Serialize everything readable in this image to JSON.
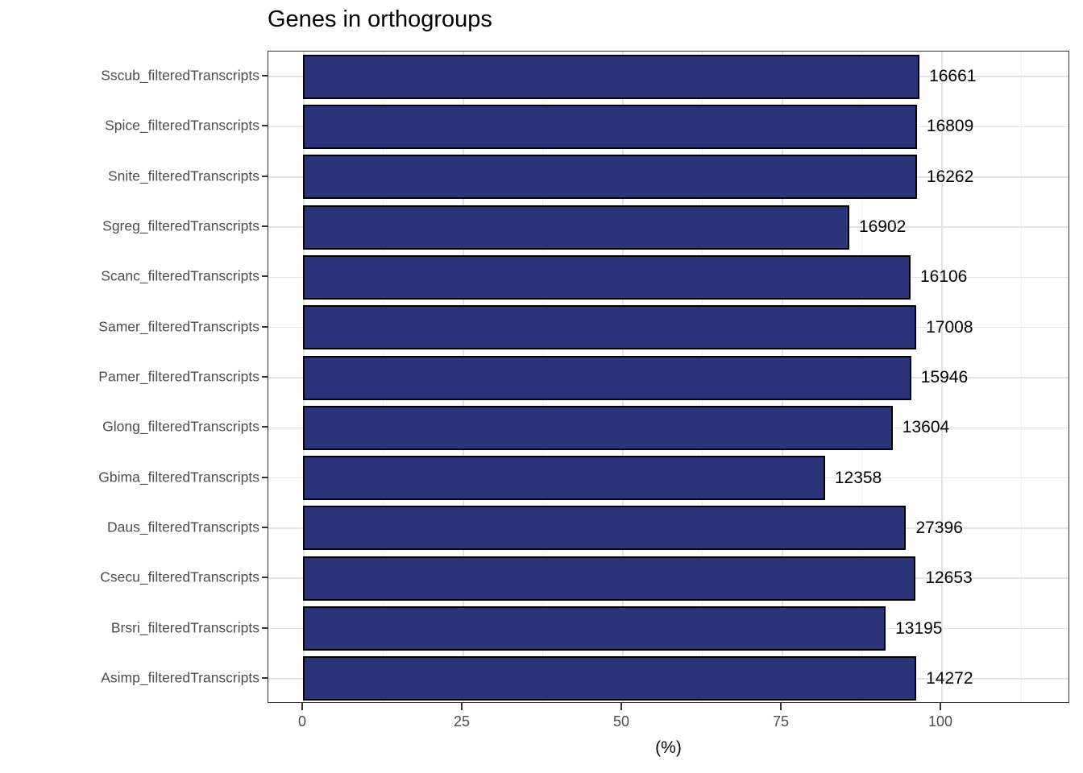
{
  "title": "Genes in orthogroups",
  "xlabel": "(%)",
  "chart_data": {
    "type": "bar",
    "orientation": "horizontal",
    "title": "Genes in orthogroups",
    "xlabel": "(%)",
    "ylabel": "",
    "categories": [
      "Sscub_filteredTranscripts",
      "Spice_filteredTranscripts",
      "Snite_filteredTranscripts",
      "Sgreg_filteredTranscripts",
      "Scanc_filteredTranscripts",
      "Samer_filteredTranscripts",
      "Pamer_filteredTranscripts",
      "Glong_filteredTranscripts",
      "Gbima_filteredTranscripts",
      "Daus_filteredTranscripts",
      "Csecu_filteredTranscripts",
      "Brsri_filteredTranscripts",
      "Asimp_filteredTranscripts"
    ],
    "values": [
      96.6,
      96.2,
      96.2,
      85.6,
      95.2,
      96.1,
      95.3,
      92.4,
      81.8,
      94.5,
      96.0,
      91.3,
      96.1
    ],
    "bar_labels": [
      "16661",
      "16809",
      "16262",
      "16902",
      "16106",
      "17008",
      "15946",
      "13604",
      "12358",
      "27396",
      "12653",
      "13195",
      "14272"
    ],
    "x_ticks": [
      "0",
      "25",
      "50",
      "75",
      "100"
    ],
    "x_tick_values": [
      0,
      25,
      50,
      75,
      100
    ],
    "x_minor_tick_values": [
      12.5,
      37.5,
      62.5,
      87.5,
      112.5
    ],
    "xlim": [
      -5.4,
      120.2
    ],
    "grid": true,
    "legend": false,
    "colors": {
      "bar_fill": "#2B347A",
      "bar_stroke": "#000000",
      "grid_major": "#E3E3E3",
      "grid_minor": "#F0F0F0",
      "axis_text": "#4D4D4D",
      "panel_border": "#333333",
      "label_text": "#000000",
      "background": "#FFFFFF"
    }
  }
}
